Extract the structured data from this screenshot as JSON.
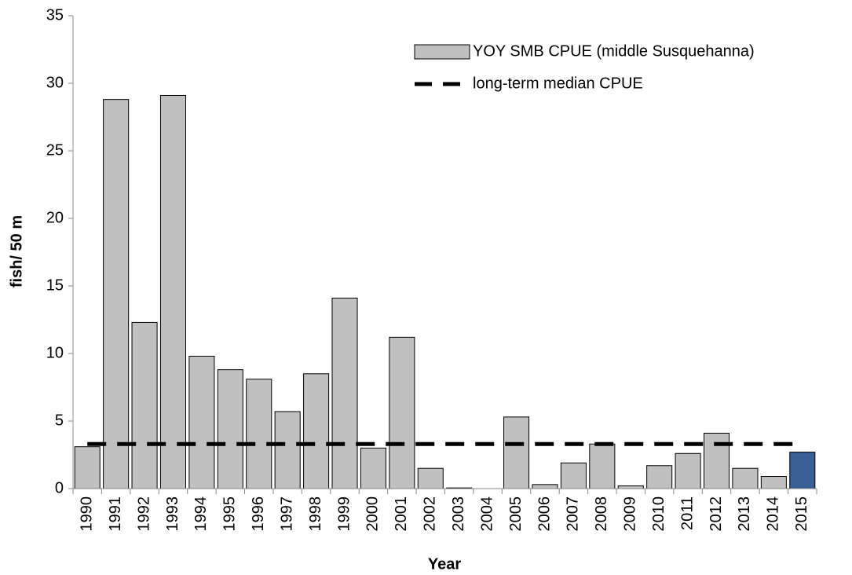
{
  "chart_data": {
    "type": "bar",
    "y_label": "fish/ 50 m",
    "x_label": "Year",
    "categories": [
      "1990",
      "1991",
      "1992",
      "1993",
      "1994",
      "1995",
      "1996",
      "1997",
      "1998",
      "1999",
      "2000",
      "2001",
      "2002",
      "2003",
      "2004",
      "2005",
      "2006",
      "2007",
      "2008",
      "2009",
      "2010",
      "2011",
      "2012",
      "2013",
      "2014",
      "2015"
    ],
    "series": [
      {
        "name": "YOY SMB CPUE (middle Susquehanna)",
        "type": "bar",
        "color": "#c0c0c0",
        "colors": [
          "#c0c0c0",
          "#c0c0c0",
          "#c0c0c0",
          "#c0c0c0",
          "#c0c0c0",
          "#c0c0c0",
          "#c0c0c0",
          "#c0c0c0",
          "#c0c0c0",
          "#c0c0c0",
          "#c0c0c0",
          "#c0c0c0",
          "#c0c0c0",
          "#c0c0c0",
          "#c0c0c0",
          "#c0c0c0",
          "#c0c0c0",
          "#c0c0c0",
          "#c0c0c0",
          "#c0c0c0",
          "#c0c0c0",
          "#c0c0c0",
          "#c0c0c0",
          "#c0c0c0",
          "#c0c0c0",
          "#3a5f94"
        ],
        "values": [
          3.1,
          28.8,
          12.3,
          29.1,
          9.8,
          8.8,
          8.1,
          5.7,
          8.5,
          14.1,
          3.0,
          11.2,
          1.5,
          0.05,
          0,
          5.3,
          0.3,
          1.9,
          3.3,
          0.2,
          1.7,
          2.6,
          4.1,
          1.5,
          0.9,
          2.7
        ]
      },
      {
        "name": "long-term median CPUE",
        "type": "line",
        "color": "#000000",
        "dashed": true,
        "values": [
          3.3,
          3.3,
          3.3,
          3.3,
          3.3,
          3.3,
          3.3,
          3.3,
          3.3,
          3.3,
          3.3,
          3.3,
          3.3,
          3.3,
          3.3,
          3.3,
          3.3,
          3.3,
          3.3,
          3.3,
          3.3,
          3.3,
          3.3,
          3.3,
          3.3,
          3.3
        ]
      }
    ],
    "ylim": [
      0,
      35
    ],
    "yticks": [
      0,
      5,
      10,
      15,
      20,
      25,
      30,
      35
    ],
    "grid": false,
    "legend": "top-right"
  }
}
